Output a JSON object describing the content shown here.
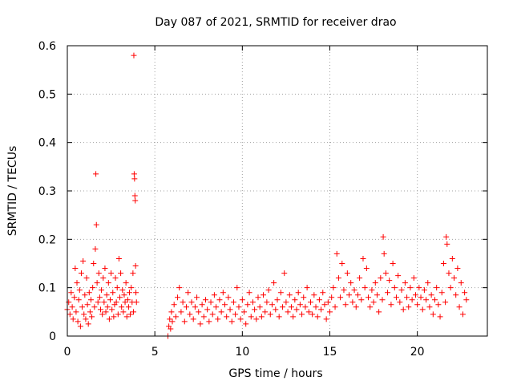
{
  "chart_data": {
    "type": "scatter",
    "title": "Day 087 of 2021, SRMTID for receiver drao",
    "xlabel": "GPS time / hours",
    "ylabel": "SRMTID / TECUs",
    "xlim": [
      0,
      24
    ],
    "ylim": [
      0,
      0.6
    ],
    "xticks": [
      0,
      5,
      10,
      15,
      20
    ],
    "xtick_labels": [
      "0",
      "5",
      "10",
      "15",
      "20"
    ],
    "yticks": [
      0,
      0.1,
      0.2,
      0.3,
      0.4,
      0.5,
      0.6
    ],
    "ytick_labels": [
      "0",
      "0.1",
      "0.2",
      "0.3",
      "0.4",
      "0.5",
      "0.6"
    ],
    "grid": true,
    "marker": "+",
    "color": "#ff0000",
    "series": [
      {
        "name": "SRMTID",
        "points": [
          [
            0.0,
            0.055
          ],
          [
            0.08,
            0.07
          ],
          [
            0.15,
            0.045
          ],
          [
            0.22,
            0.09
          ],
          [
            0.28,
            0.06
          ],
          [
            0.33,
            0.035
          ],
          [
            0.4,
            0.08
          ],
          [
            0.45,
            0.14
          ],
          [
            0.5,
            0.05
          ],
          [
            0.55,
            0.11
          ],
          [
            0.6,
            0.03
          ],
          [
            0.65,
            0.075
          ],
          [
            0.7,
            0.095
          ],
          [
            0.75,
            0.02
          ],
          [
            0.8,
            0.13
          ],
          [
            0.85,
            0.06
          ],
          [
            0.9,
            0.155
          ],
          [
            0.95,
            0.045
          ],
          [
            1.0,
            0.085
          ],
          [
            1.05,
            0.035
          ],
          [
            1.1,
            0.12
          ],
          [
            1.15,
            0.065
          ],
          [
            1.2,
            0.025
          ],
          [
            1.25,
            0.09
          ],
          [
            1.3,
            0.05
          ],
          [
            1.35,
            0.075
          ],
          [
            1.4,
            0.04
          ],
          [
            1.45,
            0.1
          ],
          [
            1.5,
            0.15
          ],
          [
            1.55,
            0.06
          ],
          [
            1.6,
            0.18
          ],
          [
            1.63,
            0.335
          ],
          [
            1.66,
            0.23
          ],
          [
            1.7,
            0.11
          ],
          [
            1.75,
            0.07
          ],
          [
            1.8,
            0.13
          ],
          [
            1.85,
            0.08
          ],
          [
            1.9,
            0.055
          ],
          [
            1.95,
            0.095
          ],
          [
            2.0,
            0.045
          ],
          [
            2.05,
            0.12
          ],
          [
            2.1,
            0.07
          ],
          [
            2.15,
            0.14
          ],
          [
            2.2,
            0.05
          ],
          [
            2.25,
            0.085
          ],
          [
            2.3,
            0.06
          ],
          [
            2.35,
            0.11
          ],
          [
            2.4,
            0.035
          ],
          [
            2.45,
            0.075
          ],
          [
            2.5,
            0.13
          ],
          [
            2.55,
            0.055
          ],
          [
            2.6,
            0.09
          ],
          [
            2.65,
            0.04
          ],
          [
            2.7,
            0.065
          ],
          [
            2.75,
            0.12
          ],
          [
            2.8,
            0.07
          ],
          [
            2.85,
            0.1
          ],
          [
            2.9,
            0.045
          ],
          [
            2.95,
            0.16
          ],
          [
            3.0,
            0.08
          ],
          [
            3.05,
            0.13
          ],
          [
            3.1,
            0.06
          ],
          [
            3.15,
            0.095
          ],
          [
            3.2,
            0.05
          ],
          [
            3.25,
            0.085
          ],
          [
            3.3,
            0.07
          ],
          [
            3.35,
            0.11
          ],
          [
            3.4,
            0.04
          ],
          [
            3.45,
            0.075
          ],
          [
            3.5,
            0.06
          ],
          [
            3.55,
            0.09
          ],
          [
            3.6,
            0.045
          ],
          [
            3.65,
            0.1
          ],
          [
            3.7,
            0.07
          ],
          [
            3.75,
            0.13
          ],
          [
            3.78,
            0.05
          ],
          [
            3.8,
            0.58
          ],
          [
            3.82,
            0.335
          ],
          [
            3.84,
            0.325
          ],
          [
            3.86,
            0.29
          ],
          [
            3.88,
            0.28
          ],
          [
            3.9,
            0.145
          ],
          [
            3.92,
            0.09
          ],
          [
            3.95,
            0.07
          ],
          [
            5.75,
            0.0
          ],
          [
            5.8,
            0.02
          ],
          [
            5.85,
            0.035
          ],
          [
            5.9,
            0.015
          ],
          [
            5.95,
            0.05
          ],
          [
            6.0,
            0.03
          ],
          [
            6.1,
            0.065
          ],
          [
            6.2,
            0.04
          ],
          [
            6.3,
            0.08
          ],
          [
            6.4,
            0.1
          ],
          [
            6.5,
            0.05
          ],
          [
            6.6,
            0.07
          ],
          [
            6.7,
            0.03
          ],
          [
            6.8,
            0.06
          ],
          [
            6.9,
            0.09
          ],
          [
            7.0,
            0.045
          ],
          [
            7.1,
            0.07
          ],
          [
            7.2,
            0.035
          ],
          [
            7.3,
            0.06
          ],
          [
            7.4,
            0.08
          ],
          [
            7.5,
            0.05
          ],
          [
            7.6,
            0.025
          ],
          [
            7.7,
            0.065
          ],
          [
            7.8,
            0.04
          ],
          [
            7.9,
            0.075
          ],
          [
            8.0,
            0.055
          ],
          [
            8.1,
            0.03
          ],
          [
            8.2,
            0.07
          ],
          [
            8.3,
            0.045
          ],
          [
            8.4,
            0.085
          ],
          [
            8.5,
            0.06
          ],
          [
            8.6,
            0.035
          ],
          [
            8.7,
            0.075
          ],
          [
            8.8,
            0.05
          ],
          [
            8.9,
            0.09
          ],
          [
            9.0,
            0.065
          ],
          [
            9.1,
            0.04
          ],
          [
            9.2,
            0.08
          ],
          [
            9.3,
            0.055
          ],
          [
            9.4,
            0.03
          ],
          [
            9.5,
            0.07
          ],
          [
            9.6,
            0.045
          ],
          [
            9.7,
            0.1
          ],
          [
            9.8,
            0.06
          ],
          [
            9.9,
            0.035
          ],
          [
            10.0,
            0.075
          ],
          [
            10.1,
            0.05
          ],
          [
            10.2,
            0.025
          ],
          [
            10.3,
            0.065
          ],
          [
            10.4,
            0.09
          ],
          [
            10.5,
            0.04
          ],
          [
            10.6,
            0.07
          ],
          [
            10.7,
            0.055
          ],
          [
            10.8,
            0.035
          ],
          [
            10.9,
            0.08
          ],
          [
            11.0,
            0.06
          ],
          [
            11.1,
            0.04
          ],
          [
            11.2,
            0.085
          ],
          [
            11.3,
            0.05
          ],
          [
            11.4,
            0.07
          ],
          [
            11.5,
            0.095
          ],
          [
            11.6,
            0.045
          ],
          [
            11.7,
            0.065
          ],
          [
            11.8,
            0.11
          ],
          [
            11.9,
            0.055
          ],
          [
            12.0,
            0.075
          ],
          [
            12.1,
            0.04
          ],
          [
            12.2,
            0.09
          ],
          [
            12.3,
            0.06
          ],
          [
            12.4,
            0.13
          ],
          [
            12.5,
            0.07
          ],
          [
            12.6,
            0.05
          ],
          [
            12.7,
            0.085
          ],
          [
            12.8,
            0.06
          ],
          [
            12.9,
            0.04
          ],
          [
            13.0,
            0.075
          ],
          [
            13.1,
            0.055
          ],
          [
            13.2,
            0.09
          ],
          [
            13.3,
            0.065
          ],
          [
            13.4,
            0.045
          ],
          [
            13.5,
            0.08
          ],
          [
            13.6,
            0.06
          ],
          [
            13.7,
            0.1
          ],
          [
            13.8,
            0.05
          ],
          [
            13.9,
            0.07
          ],
          [
            14.0,
            0.045
          ],
          [
            14.1,
            0.085
          ],
          [
            14.2,
            0.06
          ],
          [
            14.3,
            0.04
          ],
          [
            14.4,
            0.075
          ],
          [
            14.5,
            0.055
          ],
          [
            14.6,
            0.09
          ],
          [
            14.7,
            0.065
          ],
          [
            14.8,
            0.035
          ],
          [
            14.9,
            0.07
          ],
          [
            15.0,
            0.05
          ],
          [
            15.1,
            0.08
          ],
          [
            15.2,
            0.1
          ],
          [
            15.3,
            0.06
          ],
          [
            15.4,
            0.17
          ],
          [
            15.5,
            0.12
          ],
          [
            15.6,
            0.08
          ],
          [
            15.7,
            0.15
          ],
          [
            15.8,
            0.095
          ],
          [
            15.9,
            0.065
          ],
          [
            16.0,
            0.13
          ],
          [
            16.1,
            0.085
          ],
          [
            16.2,
            0.11
          ],
          [
            16.3,
            0.07
          ],
          [
            16.4,
            0.095
          ],
          [
            16.5,
            0.06
          ],
          [
            16.6,
            0.085
          ],
          [
            16.7,
            0.12
          ],
          [
            16.8,
            0.075
          ],
          [
            16.9,
            0.16
          ],
          [
            17.0,
            0.1
          ],
          [
            17.1,
            0.14
          ],
          [
            17.2,
            0.08
          ],
          [
            17.3,
            0.06
          ],
          [
            17.4,
            0.095
          ],
          [
            17.5,
            0.07
          ],
          [
            17.6,
            0.11
          ],
          [
            17.7,
            0.085
          ],
          [
            17.8,
            0.05
          ],
          [
            17.9,
            0.12
          ],
          [
            18.0,
            0.075
          ],
          [
            18.05,
            0.205
          ],
          [
            18.1,
            0.17
          ],
          [
            18.2,
            0.13
          ],
          [
            18.3,
            0.09
          ],
          [
            18.4,
            0.115
          ],
          [
            18.5,
            0.065
          ],
          [
            18.6,
            0.15
          ],
          [
            18.7,
            0.1
          ],
          [
            18.8,
            0.08
          ],
          [
            18.9,
            0.125
          ],
          [
            19.0,
            0.07
          ],
          [
            19.1,
            0.095
          ],
          [
            19.2,
            0.055
          ],
          [
            19.3,
            0.11
          ],
          [
            19.4,
            0.08
          ],
          [
            19.5,
            0.06
          ],
          [
            19.6,
            0.1
          ],
          [
            19.7,
            0.075
          ],
          [
            19.8,
            0.12
          ],
          [
            19.9,
            0.085
          ],
          [
            20.0,
            0.065
          ],
          [
            20.1,
            0.1
          ],
          [
            20.2,
            0.08
          ],
          [
            20.3,
            0.055
          ],
          [
            20.4,
            0.095
          ],
          [
            20.5,
            0.075
          ],
          [
            20.6,
            0.11
          ],
          [
            20.7,
            0.06
          ],
          [
            20.8,
            0.085
          ],
          [
            20.9,
            0.045
          ],
          [
            21.0,
            0.075
          ],
          [
            21.1,
            0.1
          ],
          [
            21.2,
            0.065
          ],
          [
            21.3,
            0.04
          ],
          [
            21.4,
            0.09
          ],
          [
            21.5,
            0.15
          ],
          [
            21.6,
            0.07
          ],
          [
            21.65,
            0.205
          ],
          [
            21.7,
            0.19
          ],
          [
            21.8,
            0.13
          ],
          [
            21.9,
            0.1
          ],
          [
            22.0,
            0.16
          ],
          [
            22.1,
            0.12
          ],
          [
            22.2,
            0.085
          ],
          [
            22.3,
            0.14
          ],
          [
            22.4,
            0.06
          ],
          [
            22.5,
            0.11
          ],
          [
            22.6,
            0.045
          ],
          [
            22.7,
            0.09
          ],
          [
            22.8,
            0.075
          ]
        ]
      }
    ]
  }
}
